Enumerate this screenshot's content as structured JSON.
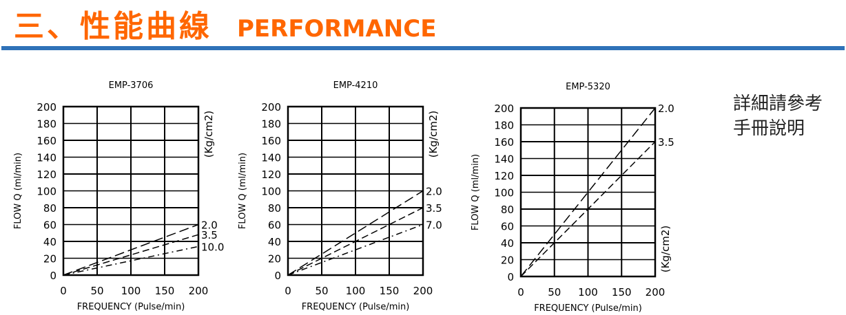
{
  "header": {
    "title_zh": "三、性能曲線",
    "title_en": "PERFORMANCE",
    "accent": "#ff6600",
    "rule_color": "#2f72b8"
  },
  "note": {
    "line1": "詳細請參考",
    "line2": "手冊說明"
  },
  "chart_data": [
    {
      "type": "line",
      "title": "EMP-3706",
      "xlabel": "FREQUENCY (Pulse/min)",
      "ylabel": "FLOW  Q (ml/min)",
      "unit_label": "(Kg/cm2)",
      "xlim": [
        0,
        200
      ],
      "ylim": [
        0,
        200
      ],
      "xticks": [
        0,
        50,
        100,
        150,
        200
      ],
      "yticks": [
        0,
        20,
        40,
        60,
        80,
        100,
        120,
        140,
        160,
        180,
        200
      ],
      "series": [
        {
          "name": "2.0",
          "x": [
            0,
            200
          ],
          "y": [
            0,
            60
          ]
        },
        {
          "name": "3.5",
          "x": [
            0,
            200
          ],
          "y": [
            0,
            48
          ]
        },
        {
          "name": "10.0",
          "x": [
            0,
            200
          ],
          "y": [
            0,
            34
          ]
        }
      ]
    },
    {
      "type": "line",
      "title": "EMP-4210",
      "xlabel": "FREQUENCY (Pulse/min)",
      "ylabel": "FLOW  Q (ml/min)",
      "unit_label": "(Kg/cm2)",
      "xlim": [
        0,
        200
      ],
      "ylim": [
        0,
        200
      ],
      "xticks": [
        0,
        50,
        100,
        150,
        200
      ],
      "yticks": [
        0,
        20,
        40,
        60,
        80,
        100,
        120,
        140,
        160,
        180,
        200
      ],
      "series": [
        {
          "name": "2.0",
          "x": [
            0,
            200
          ],
          "y": [
            0,
            100
          ]
        },
        {
          "name": "3.5",
          "x": [
            0,
            200
          ],
          "y": [
            0,
            80
          ]
        },
        {
          "name": "7.0",
          "x": [
            0,
            200
          ],
          "y": [
            0,
            60
          ]
        }
      ]
    },
    {
      "type": "line",
      "title": "EMP-5320",
      "xlabel": "FREQUENCY (Pulse/min)",
      "ylabel": "FLOW  Q (ml/min)",
      "unit_label": "(Kg/cm2)",
      "xlim": [
        0,
        200
      ],
      "ylim": [
        0,
        200
      ],
      "xticks": [
        0,
        50,
        100,
        150,
        200
      ],
      "yticks": [
        0,
        20,
        40,
        60,
        80,
        100,
        120,
        140,
        160,
        180,
        200
      ],
      "series": [
        {
          "name": "2.0",
          "x": [
            0,
            200
          ],
          "y": [
            0,
            200
          ]
        },
        {
          "name": "3.5",
          "x": [
            0,
            200
          ],
          "y": [
            0,
            160
          ]
        }
      ]
    }
  ]
}
